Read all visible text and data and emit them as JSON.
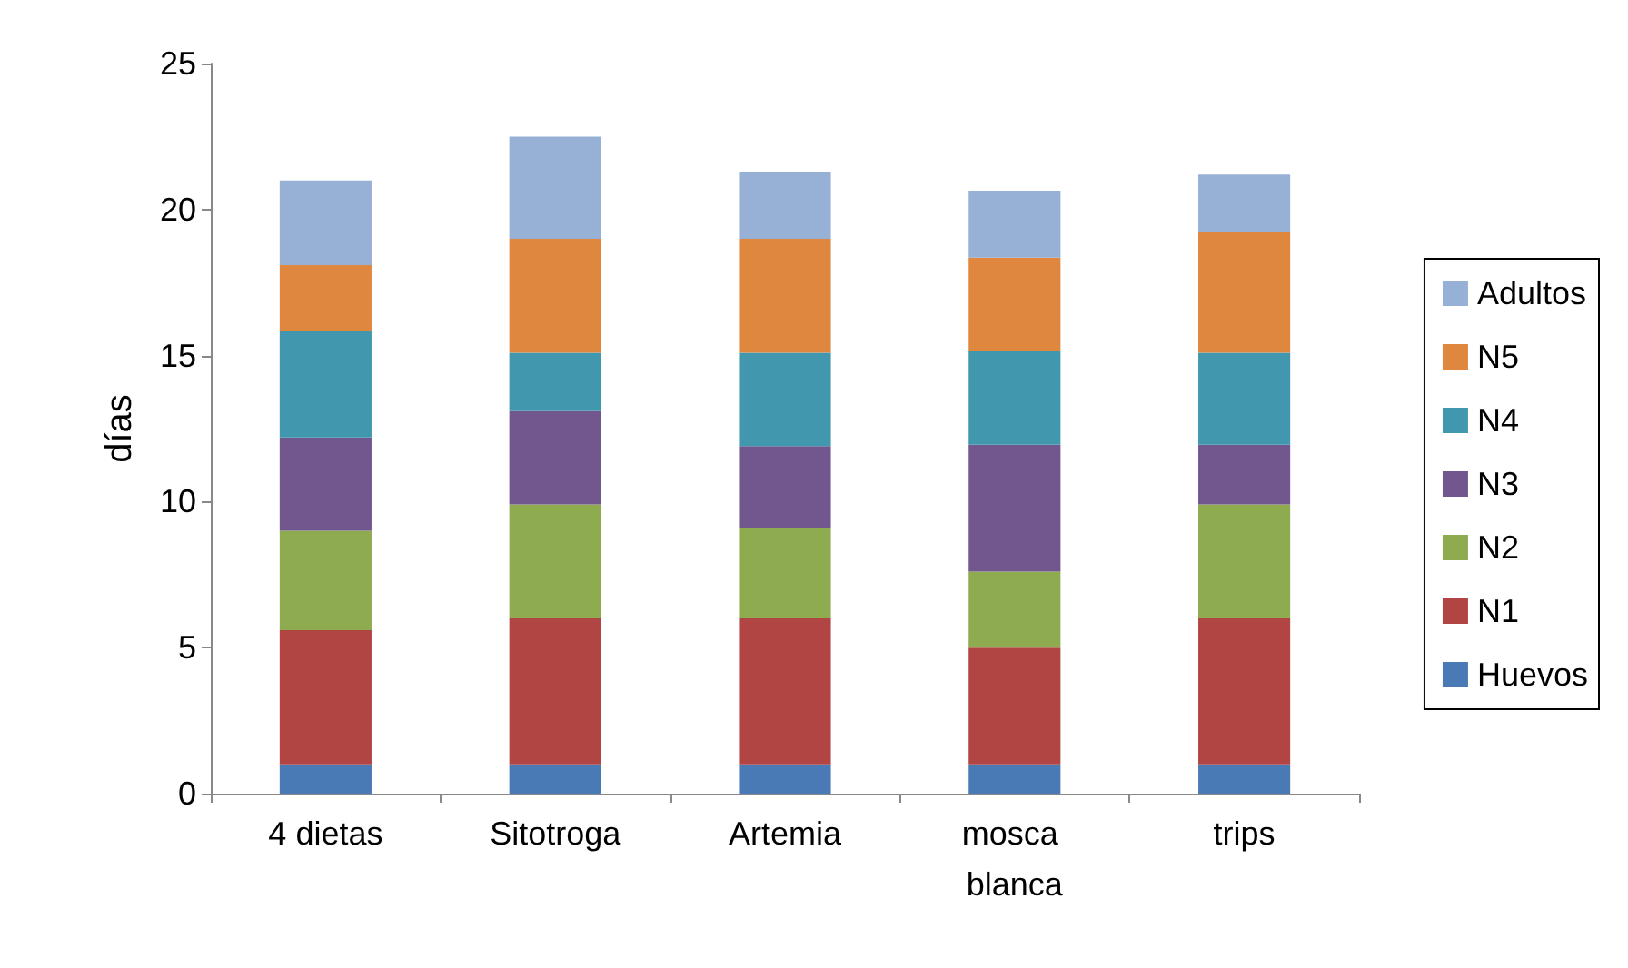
{
  "chart_data": {
    "type": "bar",
    "stacked": true,
    "ylabel": "días",
    "categories": [
      "4 dietas",
      "Sitotroga",
      "Artemia",
      "mosca blanca",
      "trips"
    ],
    "series": [
      {
        "name": "Huevos",
        "color": "#4a7ab5",
        "values": [
          1,
          1,
          1,
          1,
          1
        ]
      },
      {
        "name": "N1",
        "color": "#b04543",
        "values": [
          4.6,
          5,
          5,
          4,
          5
        ]
      },
      {
        "name": "N2",
        "color": "#8fab4f",
        "values": [
          3.4,
          3.9,
          3.1,
          2.6,
          3.9
        ]
      },
      {
        "name": "N3",
        "color": "#72578f",
        "values": [
          3.2,
          3.2,
          2.8,
          4.35,
          2.05
        ]
      },
      {
        "name": "N4",
        "color": "#4198ae",
        "values": [
          3.65,
          2,
          3.2,
          3.2,
          3.15
        ]
      },
      {
        "name": "N5",
        "color": "#e0873f",
        "values": [
          2.25,
          3.9,
          3.9,
          3.2,
          4.15
        ]
      },
      {
        "name": "Adultos",
        "color": "#97b0d6",
        "values": [
          2.9,
          3.5,
          2.3,
          2.3,
          1.95
        ]
      }
    ],
    "ylim": [
      0,
      25
    ],
    "yticks": [
      0,
      5,
      10,
      15,
      20,
      25
    ],
    "grid": false,
    "legend": "right"
  }
}
